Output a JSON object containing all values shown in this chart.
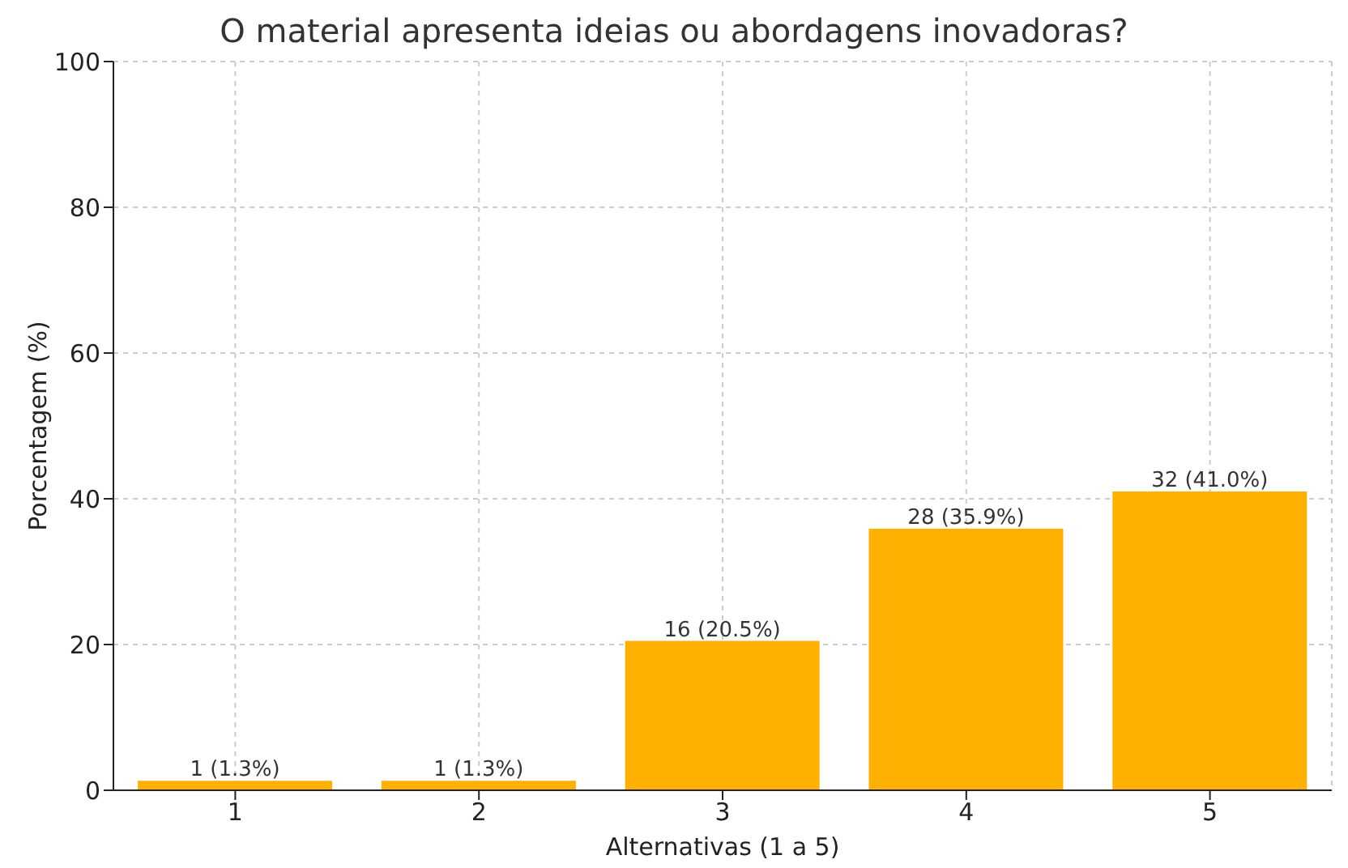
{
  "chart_data": {
    "type": "bar",
    "title": "O material apresenta ideias ou abordagens inovadoras?",
    "xlabel": "Alternativas (1 a 5)",
    "ylabel": "Porcentagem (%)",
    "categories": [
      "1",
      "2",
      "3",
      "4",
      "5"
    ],
    "values": [
      1.3,
      1.3,
      20.5,
      35.9,
      41.0
    ],
    "value_labels": [
      "1 (1.3%)",
      "1 (1.3%)",
      "16 (20.5%)",
      "28 (35.9%)",
      "32 (41.0%)"
    ],
    "color": "#ffb000",
    "ylim": [
      0,
      100
    ],
    "yticks": [
      0,
      20,
      40,
      60,
      80,
      100
    ],
    "grid": true
  }
}
